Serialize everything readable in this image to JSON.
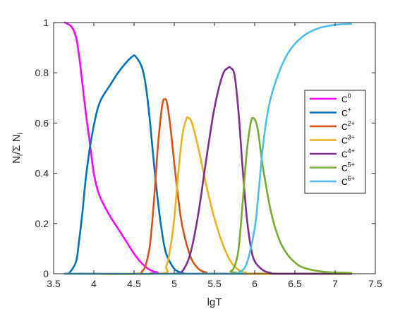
{
  "chart_data": {
    "type": "line",
    "title": "",
    "xlabel": "lgT",
    "ylabel_parts": {
      "n": "N",
      "sub_i": "i",
      "slash_sigma": "/Σ N",
      "sub_i2": "i"
    },
    "xlim": [
      3.5,
      7.5
    ],
    "ylim": [
      0,
      1
    ],
    "xticks": [
      "3.5",
      "4",
      "4.5",
      "5",
      "5.5",
      "6",
      "6.5",
      "7",
      "7.5"
    ],
    "yticks": [
      "0",
      "0.2",
      "0.4",
      "0.6",
      "0.8",
      "1"
    ],
    "grid": false,
    "legend_position": "right",
    "series": [
      {
        "base": "C",
        "sup": "0",
        "color": "#ff00ff",
        "points": [
          [
            3.64,
            1.0
          ],
          [
            3.7,
            0.99
          ],
          [
            3.74,
            0.975
          ],
          [
            3.78,
            0.94
          ],
          [
            3.82,
            0.86
          ],
          [
            3.86,
            0.75
          ],
          [
            3.9,
            0.64
          ],
          [
            3.95,
            0.52
          ],
          [
            4.0,
            0.4
          ],
          [
            4.05,
            0.33
          ],
          [
            4.1,
            0.29
          ],
          [
            4.2,
            0.23
          ],
          [
            4.3,
            0.18
          ],
          [
            4.4,
            0.13
          ],
          [
            4.5,
            0.08
          ],
          [
            4.6,
            0.04
          ],
          [
            4.7,
            0.015
          ],
          [
            4.8,
            0.004
          ],
          [
            4.9,
            0.0
          ],
          [
            7.2,
            0.0
          ]
        ]
      },
      {
        "base": "C",
        "sup": "+",
        "color": "#0072bd",
        "points": [
          [
            3.64,
            0.0
          ],
          [
            3.7,
            0.005
          ],
          [
            3.78,
            0.05
          ],
          [
            3.82,
            0.14
          ],
          [
            3.86,
            0.25
          ],
          [
            3.9,
            0.38
          ],
          [
            3.95,
            0.5
          ],
          [
            4.0,
            0.59
          ],
          [
            4.05,
            0.66
          ],
          [
            4.1,
            0.7
          ],
          [
            4.2,
            0.75
          ],
          [
            4.3,
            0.8
          ],
          [
            4.4,
            0.84
          ],
          [
            4.48,
            0.865
          ],
          [
            4.52,
            0.865
          ],
          [
            4.6,
            0.82
          ],
          [
            4.65,
            0.74
          ],
          [
            4.7,
            0.6
          ],
          [
            4.75,
            0.43
          ],
          [
            4.8,
            0.28
          ],
          [
            4.85,
            0.16
          ],
          [
            4.9,
            0.08
          ],
          [
            5.0,
            0.02
          ],
          [
            5.1,
            0.004
          ],
          [
            5.2,
            0.0
          ],
          [
            7.2,
            0.0
          ]
        ]
      },
      {
        "base": "C",
        "sup": "2+",
        "color": "#d95319",
        "points": [
          [
            3.64,
            0.0
          ],
          [
            4.5,
            0.0
          ],
          [
            4.6,
            0.01
          ],
          [
            4.65,
            0.04
          ],
          [
            4.7,
            0.12
          ],
          [
            4.75,
            0.3
          ],
          [
            4.8,
            0.52
          ],
          [
            4.85,
            0.67
          ],
          [
            4.88,
            0.695
          ],
          [
            4.91,
            0.68
          ],
          [
            4.95,
            0.59
          ],
          [
            5.0,
            0.44
          ],
          [
            5.05,
            0.3
          ],
          [
            5.1,
            0.19
          ],
          [
            5.2,
            0.07
          ],
          [
            5.3,
            0.02
          ],
          [
            5.4,
            0.005
          ],
          [
            5.5,
            0.0
          ],
          [
            7.2,
            0.0
          ]
        ]
      },
      {
        "base": "C",
        "sup": "3+",
        "color": "#edb120",
        "points": [
          [
            3.64,
            0.0
          ],
          [
            4.8,
            0.0
          ],
          [
            4.9,
            0.03
          ],
          [
            4.95,
            0.1
          ],
          [
            5.0,
            0.22
          ],
          [
            5.05,
            0.4
          ],
          [
            5.1,
            0.55
          ],
          [
            5.15,
            0.615
          ],
          [
            5.18,
            0.62
          ],
          [
            5.22,
            0.6
          ],
          [
            5.3,
            0.5
          ],
          [
            5.4,
            0.35
          ],
          [
            5.5,
            0.22
          ],
          [
            5.6,
            0.12
          ],
          [
            5.7,
            0.05
          ],
          [
            5.8,
            0.015
          ],
          [
            5.9,
            0.003
          ],
          [
            6.0,
            0.0
          ],
          [
            7.2,
            0.0
          ]
        ]
      },
      {
        "base": "C",
        "sup": "4+",
        "color": "#7e2f8e",
        "points": [
          [
            3.64,
            0.0
          ],
          [
            5.0,
            0.0
          ],
          [
            5.1,
            0.01
          ],
          [
            5.2,
            0.08
          ],
          [
            5.3,
            0.24
          ],
          [
            5.4,
            0.46
          ],
          [
            5.5,
            0.66
          ],
          [
            5.6,
            0.79
          ],
          [
            5.67,
            0.82
          ],
          [
            5.7,
            0.82
          ],
          [
            5.75,
            0.79
          ],
          [
            5.8,
            0.64
          ],
          [
            5.85,
            0.42
          ],
          [
            5.9,
            0.23
          ],
          [
            5.95,
            0.11
          ],
          [
            6.0,
            0.05
          ],
          [
            6.1,
            0.015
          ],
          [
            6.2,
            0.003
          ],
          [
            6.3,
            0.0
          ],
          [
            7.2,
            0.0
          ]
        ]
      },
      {
        "base": "C",
        "sup": "5+",
        "color": "#77ac30",
        "points": [
          [
            3.64,
            0.0
          ],
          [
            5.6,
            0.0
          ],
          [
            5.7,
            0.01
          ],
          [
            5.75,
            0.03
          ],
          [
            5.8,
            0.1
          ],
          [
            5.85,
            0.28
          ],
          [
            5.9,
            0.48
          ],
          [
            5.95,
            0.6
          ],
          [
            5.98,
            0.62
          ],
          [
            6.02,
            0.6
          ],
          [
            6.05,
            0.55
          ],
          [
            6.1,
            0.43
          ],
          [
            6.2,
            0.25
          ],
          [
            6.3,
            0.14
          ],
          [
            6.4,
            0.08
          ],
          [
            6.5,
            0.045
          ],
          [
            6.6,
            0.025
          ],
          [
            6.8,
            0.01
          ],
          [
            7.0,
            0.005
          ],
          [
            7.2,
            0.003
          ]
        ]
      },
      {
        "base": "C",
        "sup": "6+",
        "color": "#4dbeee",
        "points": [
          [
            3.64,
            0.0
          ],
          [
            5.7,
            0.0
          ],
          [
            5.8,
            0.005
          ],
          [
            5.9,
            0.04
          ],
          [
            6.0,
            0.18
          ],
          [
            6.05,
            0.33
          ],
          [
            6.1,
            0.5
          ],
          [
            6.15,
            0.62
          ],
          [
            6.2,
            0.7
          ],
          [
            6.3,
            0.8
          ],
          [
            6.4,
            0.87
          ],
          [
            6.5,
            0.915
          ],
          [
            6.6,
            0.945
          ],
          [
            6.7,
            0.965
          ],
          [
            6.8,
            0.978
          ],
          [
            6.9,
            0.986
          ],
          [
            7.0,
            0.991
          ],
          [
            7.1,
            0.994
          ],
          [
            7.2,
            0.995
          ]
        ]
      }
    ]
  }
}
